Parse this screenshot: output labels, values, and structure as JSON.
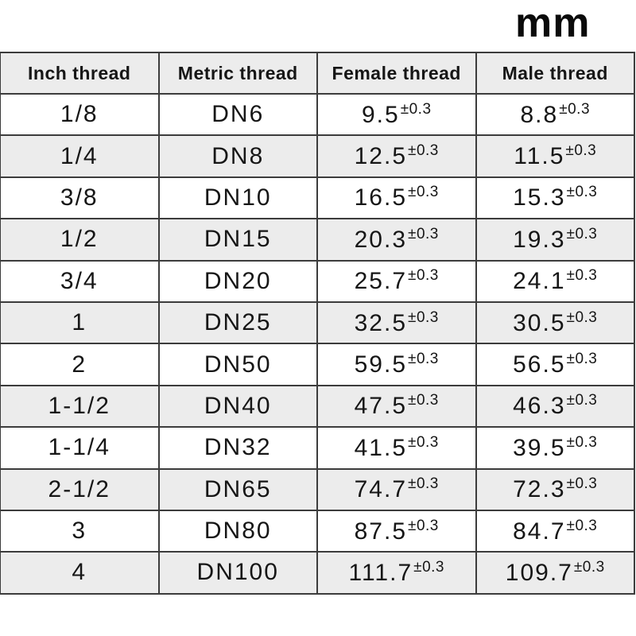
{
  "chart_data": {
    "type": "table",
    "title": "mm",
    "columns": [
      "Inch thread",
      "Metric thread",
      "Female thread",
      "Male thread"
    ],
    "tolerance": "±0.3",
    "rows": [
      {
        "inch": "1/8",
        "metric": "DN6",
        "female": "9.5",
        "male": "8.8"
      },
      {
        "inch": "1/4",
        "metric": "DN8",
        "female": "12.5",
        "male": "11.5"
      },
      {
        "inch": "3/8",
        "metric": "DN10",
        "female": "16.5",
        "male": "15.3"
      },
      {
        "inch": "1/2",
        "metric": "DN15",
        "female": "20.3",
        "male": "19.3"
      },
      {
        "inch": "3/4",
        "metric": "DN20",
        "female": "25.7",
        "male": "24.1"
      },
      {
        "inch": "1",
        "metric": "DN25",
        "female": "32.5",
        "male": "30.5"
      },
      {
        "inch": "2",
        "metric": "DN50",
        "female": "59.5",
        "male": "56.5"
      },
      {
        "inch": "1-1/2",
        "metric": "DN40",
        "female": "47.5",
        "male": "46.3"
      },
      {
        "inch": "1-1/4",
        "metric": "DN32",
        "female": "41.5",
        "male": "39.5"
      },
      {
        "inch": "2-1/2",
        "metric": "DN65",
        "female": "74.7",
        "male": "72.3"
      },
      {
        "inch": "3",
        "metric": "DN80",
        "female": "87.5",
        "male": "84.7"
      },
      {
        "inch": "4",
        "metric": "DN100",
        "female": "111.7",
        "male": "109.7"
      }
    ],
    "layout": {
      "grid": "on",
      "header_position": "top",
      "unit_label_position": "top-right"
    }
  },
  "colors": {
    "border": "#3c3c3c",
    "header_bg": "#ececec",
    "row_alt_bg": "#ececec",
    "row_bg": "#ffffff",
    "text": "#161616"
  }
}
